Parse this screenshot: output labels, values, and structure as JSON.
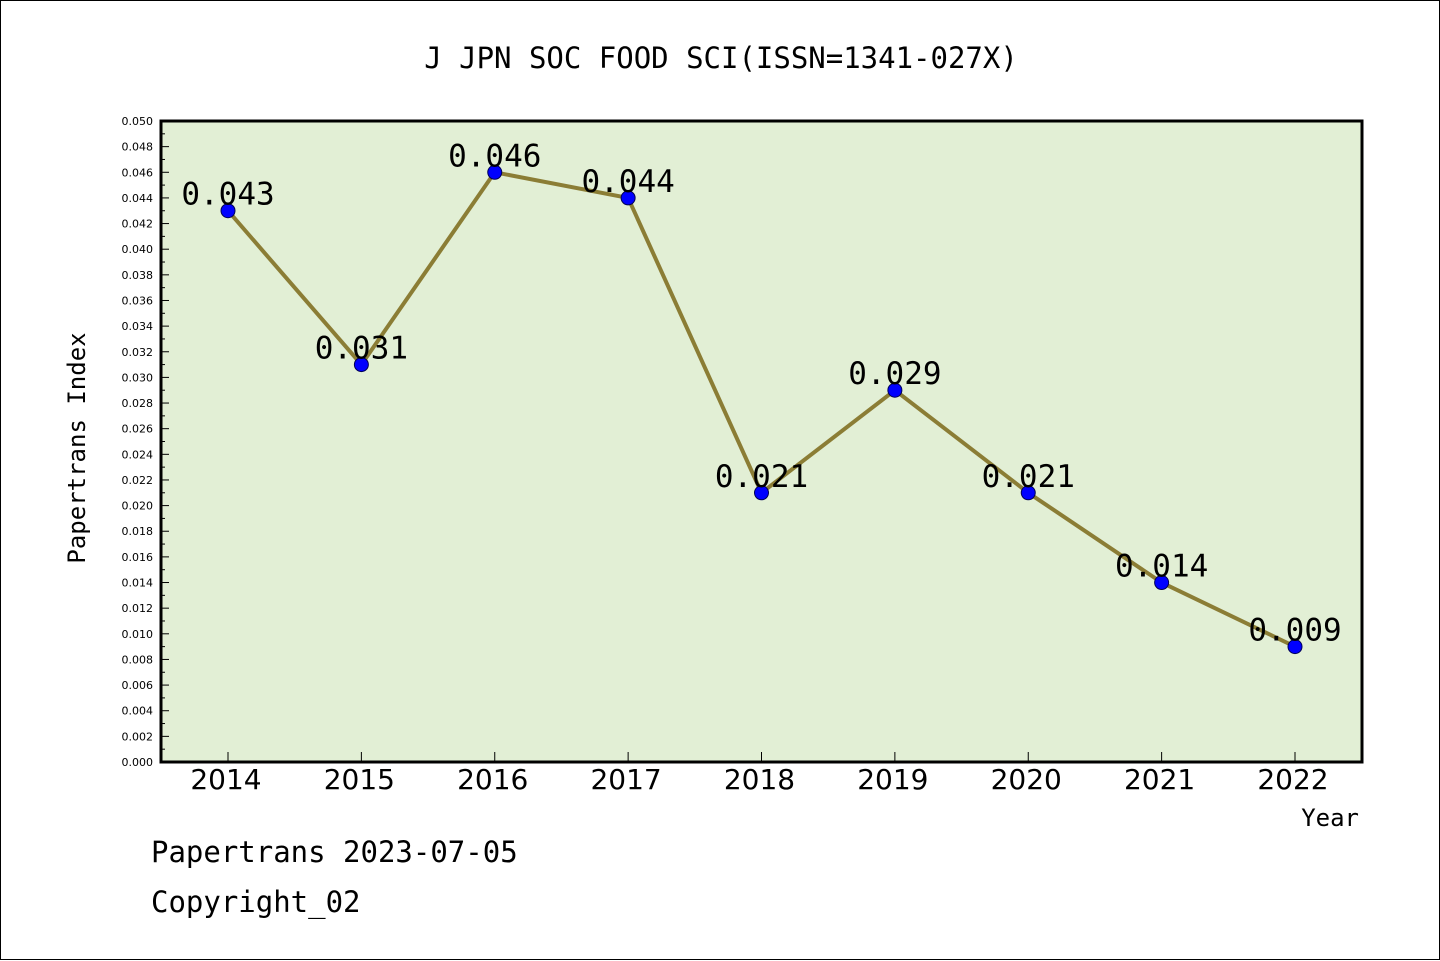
{
  "chart_data": {
    "type": "line",
    "title": "J JPN SOC FOOD SCI(ISSN=1341-027X)",
    "xlabel": "Year",
    "ylabel": "Papertrans Index",
    "categories": [
      "2014",
      "2015",
      "2016",
      "2017",
      "2018",
      "2019",
      "2020",
      "2021",
      "2022"
    ],
    "series": [
      {
        "values": [
          0.043,
          0.031,
          0.046,
          0.044,
          0.021,
          0.029,
          0.021,
          0.014,
          0.009
        ],
        "labels": [
          "0.043",
          "0.031",
          "0.046",
          "0.044",
          "0.021",
          "0.029",
          "0.021",
          "0.014",
          "0.009"
        ]
      }
    ],
    "ylim": [
      0,
      0.05
    ],
    "yticks": [
      "0.000",
      "0.002",
      "0.004",
      "0.006",
      "0.008",
      "0.010",
      "0.012",
      "0.014",
      "0.016",
      "0.018",
      "0.020",
      "0.022",
      "0.024",
      "0.026",
      "0.028",
      "0.030",
      "0.032",
      "0.034",
      "0.036",
      "0.038",
      "0.040",
      "0.042",
      "0.044",
      "0.046",
      "0.048",
      "0.050"
    ],
    "grid": false,
    "colors": {
      "plot_background": "#e2efd5",
      "line": "#8b7d35",
      "marker": "#0000ff"
    }
  },
  "footer": {
    "line1": "Papertrans 2023-07-05",
    "line2": "Copyright_02"
  }
}
